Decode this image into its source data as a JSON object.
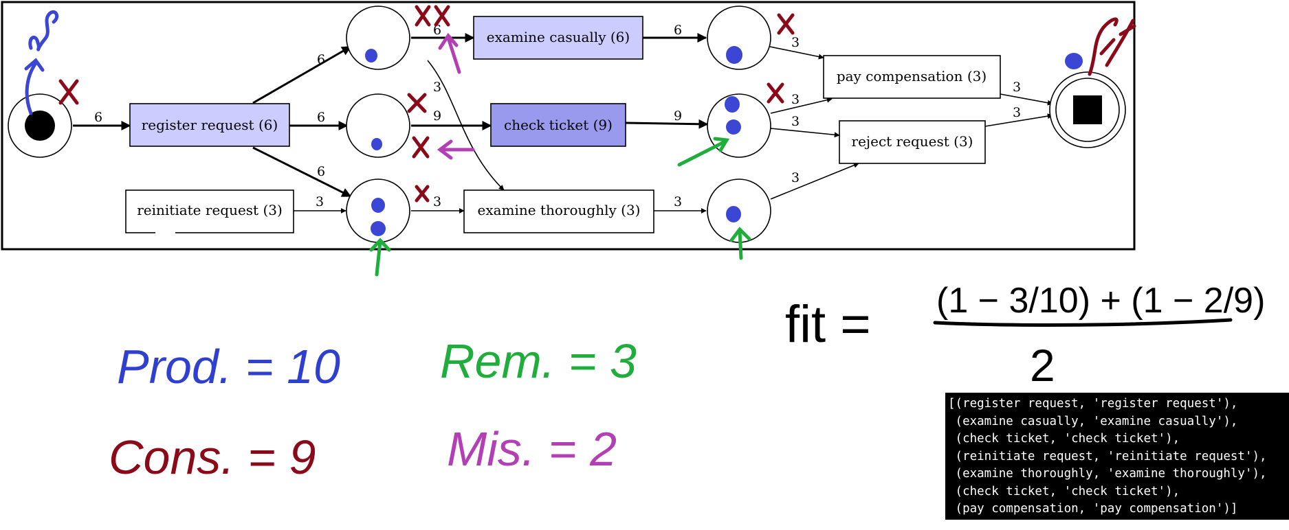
{
  "petri_net": {
    "transitions": {
      "register_request": "register request (6)",
      "examine_casually": "examine casually (6)",
      "check_ticket": "check ticket (9)",
      "reinitiate_request": "reinitiate request (3)",
      "examine_thoroughly": "examine thoroughly (3)",
      "pay_compensation": "pay compensation (3)",
      "reject_request": "reject request (3)"
    },
    "arc_labels": {
      "start_to_register": "6",
      "register_to_p1": "6",
      "register_to_p2": "6",
      "register_to_p3": "6",
      "p1_to_examine_casually": "6",
      "p1_to_examine_thoroughly": "3",
      "p2_to_check_ticket": "9",
      "reinitiate_to_p3": "3",
      "p3_to_examine_thoroughly": "3",
      "examine_casually_to_p4": "6",
      "check_ticket_to_p5": "9",
      "examine_thoroughly_to_p6": "3",
      "p4_to_pay": "3",
      "p5_to_pay": "3",
      "p5_to_reject": "3",
      "p6_to_reject": "3",
      "pay_to_end": "3",
      "reject_to_end": "3"
    },
    "colors": {
      "light_transition": "#ccccff",
      "dark_transition": "#9999ee",
      "token": "#3b47d4",
      "produced_mark": "#2f3fd0",
      "consumed_mark": "#8b0a1a",
      "remaining_mark": "#1fae3c",
      "missing_mark": "#b23fb3"
    }
  },
  "annotations": {
    "produced": "Prod. = 10",
    "consumed": "Cons. = 9",
    "remaining": "Rem. = 3",
    "missing": "Mis. = 2",
    "formula_lhs": "fit =",
    "formula_numerator": "(1 − 3/10) + (1 − 2/9)",
    "formula_denominator": "2"
  },
  "trace": [
    "[(register request, 'register request'),",
    " (examine casually, 'examine casually'),",
    " (check ticket, 'check ticket'),",
    " (reinitiate request, 'reinitiate request'),",
    " (examine thoroughly, 'examine thoroughly'),",
    " (check ticket, 'check ticket'),",
    " (pay compensation, 'pay compensation')]"
  ]
}
